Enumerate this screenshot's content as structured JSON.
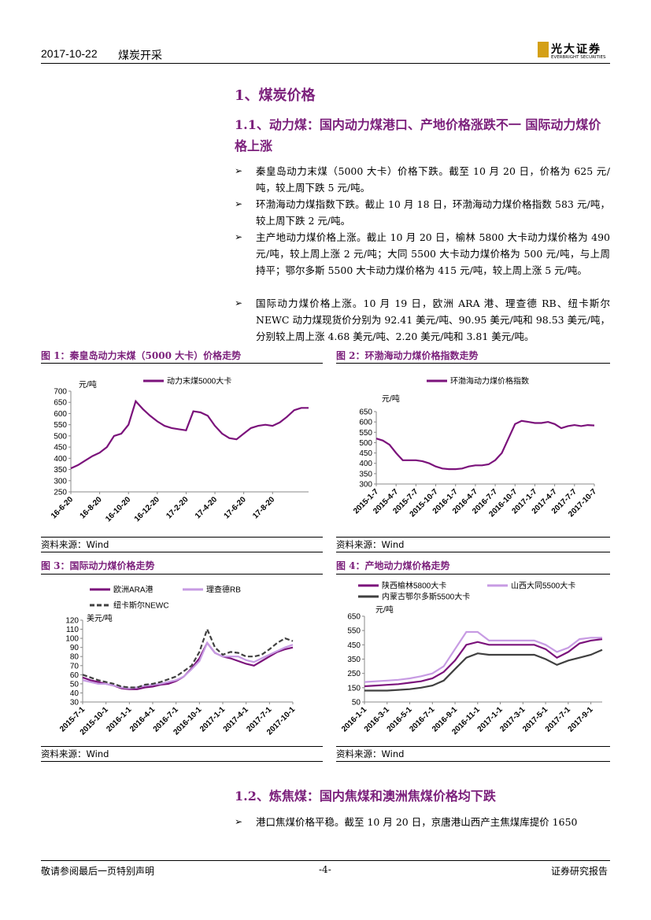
{
  "header": {
    "date": "2017-10-22",
    "section": "煤炭开采",
    "logo": "光大证券",
    "logo_en": "EVERBRIGHT SECURITIES"
  },
  "heading1": "1、煤炭价格",
  "heading2": "1.1、动力煤：国内动力煤港口、产地价格涨跌不一 国际动力煤价格上涨",
  "bullets": [
    "秦皇岛动力末煤（5000 大卡）价格下跌。截至 10 月 20 日，价格为 625 元/吨，较上周下跌 5 元/吨。",
    "环渤海动力煤指数下跌。截止 10 月 18 日，环渤海动力煤价格指数 583 元/吨，较上周下跌 2 元/吨。",
    "主产地动力煤价格上涨。截止 10 月 20 日，榆林 5800 大卡动力煤价格为 490 元/吨，较上周上涨 2 元/吨；大同 5500 大卡动力煤价格为 500 元/吨，与上周持平；鄂尔多斯 5500 大卡动力煤价格为 415 元/吨，较上周上涨 5 元/吨。",
    "国际动力煤价格上涨。10 月 19 日，欧洲 ARA 港、理查德 RB、纽卡斯尔 NEWC 动力煤现货价分别为 92.41 美元/吨、90.95 美元/吨和 98.53 美元/吨，分别较上周上涨 4.68 美元/吨、2.20 美元/吨和 3.81 美元/吨。"
  ],
  "chart_data": [
    {
      "type": "line",
      "title": "图 1：秦皇岛动力末煤（5000 大卡）价格走势",
      "y_label": "元/吨",
      "source": "资料来源：Wind",
      "categories": [
        "16-6-20",
        null,
        null,
        null,
        "16-8-20",
        null,
        null,
        null,
        "16-10-20",
        null,
        null,
        null,
        "16-12-20",
        null,
        null,
        null,
        "17-2-20",
        null,
        null,
        null,
        "17-4-20",
        null,
        null,
        null,
        "17-6-20",
        null,
        null,
        null,
        "17-8-20",
        null,
        null,
        null,
        null,
        null
      ],
      "series": [
        {
          "name": "动力末煤5000大卡",
          "color": "#7b127b",
          "values": [
            355,
            370,
            390,
            410,
            425,
            450,
            500,
            510,
            550,
            655,
            620,
            590,
            565,
            545,
            535,
            530,
            525,
            610,
            605,
            590,
            545,
            510,
            490,
            485,
            510,
            535,
            545,
            550,
            545,
            560,
            585,
            615,
            625,
            625
          ]
        }
      ],
      "ylim": [
        250,
        700
      ],
      "yticks": [
        250,
        300,
        350,
        400,
        450,
        500,
        550,
        600,
        650,
        700
      ]
    },
    {
      "type": "line",
      "title": "图 2：环渤海动力煤价格指数走势",
      "y_label": "元/吨",
      "source": "资料来源：Wind",
      "categories": [
        "2015-1-7",
        null,
        null,
        "2015-4-7",
        null,
        null,
        "2015-7-7",
        null,
        null,
        "2015-10-7",
        null,
        null,
        "2016-1-7",
        null,
        null,
        "2016-4-7",
        null,
        null,
        "2016-7-7",
        null,
        null,
        "2016-10-7",
        null,
        null,
        "2017-1-7",
        null,
        null,
        "2017-4-7",
        null,
        null,
        "2017-7-7",
        null,
        null,
        "2017-10-7"
      ],
      "series": [
        {
          "name": "环渤海动力煤价格指数",
          "color": "#7b127b",
          "values": [
            520,
            510,
            490,
            450,
            415,
            415,
            415,
            410,
            400,
            385,
            375,
            372,
            372,
            375,
            385,
            390,
            390,
            395,
            415,
            450,
            520,
            590,
            605,
            600,
            595,
            595,
            600,
            590,
            570,
            580,
            585,
            580,
            585,
            583
          ]
        }
      ],
      "ylim": [
        300,
        650
      ],
      "yticks": [
        300,
        350,
        400,
        450,
        500,
        550,
        600,
        650
      ]
    },
    {
      "type": "line",
      "title": "图 3：国际动力煤价格走势",
      "y_label": "美元/吨",
      "source": "资料来源：Wind",
      "categories": [
        "2015-7-1",
        null,
        null,
        "2015-10-1",
        null,
        null,
        "2016-1-1",
        null,
        null,
        "2016-4-1",
        null,
        null,
        "2016-7-1",
        null,
        null,
        "2016-10-1",
        null,
        null,
        "2017-1-1",
        null,
        null,
        "2017-4-1",
        null,
        null,
        "2017-7-1",
        null,
        null,
        "2017-10-1"
      ],
      "series": [
        {
          "name": "欧洲ARA港",
          "color": "#7b127b",
          "values": [
            57,
            54,
            52,
            50,
            48,
            45,
            44,
            44,
            46,
            47,
            49,
            50,
            53,
            58,
            67,
            78,
            95,
            84,
            80,
            78,
            75,
            72,
            70,
            75,
            80,
            85,
            88,
            90
          ]
        },
        {
          "name": "理查德RB",
          "color": "#c79be3",
          "values": [
            54,
            52,
            50,
            50,
            48,
            46,
            45,
            46,
            48,
            49,
            50,
            52,
            54,
            58,
            66,
            75,
            95,
            84,
            80,
            80,
            80,
            76,
            74,
            78,
            82,
            86,
            90,
            93
          ]
        },
        {
          "name": "纽卡斯尔NEWC",
          "color": "#404040",
          "dashed": true,
          "values": [
            60,
            57,
            54,
            52,
            50,
            47,
            46,
            46,
            49,
            50,
            52,
            55,
            58,
            64,
            70,
            85,
            110,
            90,
            82,
            85,
            84,
            80,
            80,
            82,
            88,
            95,
            100,
            97
          ]
        }
      ],
      "ylim": [
        30,
        120
      ],
      "yticks": [
        30,
        40,
        50,
        60,
        70,
        80,
        90,
        100,
        110,
        120
      ]
    },
    {
      "type": "line",
      "title": "图 4：产地动力煤价格走势",
      "y_label": "元/吨",
      "source": "资料来源：Wind",
      "categories": [
        "2016-1-1",
        null,
        "2016-3-1",
        null,
        "2016-5-1",
        null,
        "2016-7-1",
        null,
        "2016-9-1",
        null,
        "2016-11-1",
        null,
        "2017-1-1",
        null,
        "2017-3-1",
        null,
        "2017-5-1",
        null,
        "2017-7-1",
        null,
        "2017-9-1",
        null
      ],
      "series": [
        {
          "name": "陕西榆林5800大卡",
          "color": "#7b127b",
          "values": [
            160,
            165,
            170,
            175,
            185,
            195,
            215,
            260,
            340,
            450,
            470,
            450,
            450,
            450,
            450,
            450,
            420,
            360,
            400,
            460,
            480,
            490
          ]
        },
        {
          "name": "山西大同5500大卡",
          "color": "#c79be3",
          "values": [
            190,
            195,
            200,
            205,
            215,
            230,
            250,
            300,
            420,
            540,
            540,
            480,
            480,
            480,
            480,
            480,
            450,
            400,
            430,
            490,
            500,
            500
          ]
        },
        {
          "name": "内蒙古鄂尔多斯5500大卡",
          "color": "#404040",
          "values": [
            130,
            130,
            130,
            135,
            140,
            150,
            165,
            200,
            280,
            360,
            390,
            380,
            380,
            380,
            380,
            380,
            350,
            310,
            340,
            360,
            380,
            415
          ]
        }
      ],
      "ylim": [
        50,
        650
      ],
      "yticks": [
        50,
        150,
        250,
        350,
        450,
        550,
        650
      ]
    }
  ],
  "heading3": "1.2、炼焦煤：国内焦煤和澳洲焦煤价格均下跌",
  "bullet2": "港口焦煤价格平稳。截至 10 月 20 日，京唐港山西产主焦煤库提价 1650",
  "footer": {
    "left": "敬请参阅最后一页特别声明",
    "center": "-4-",
    "right": "证券研究报告"
  }
}
